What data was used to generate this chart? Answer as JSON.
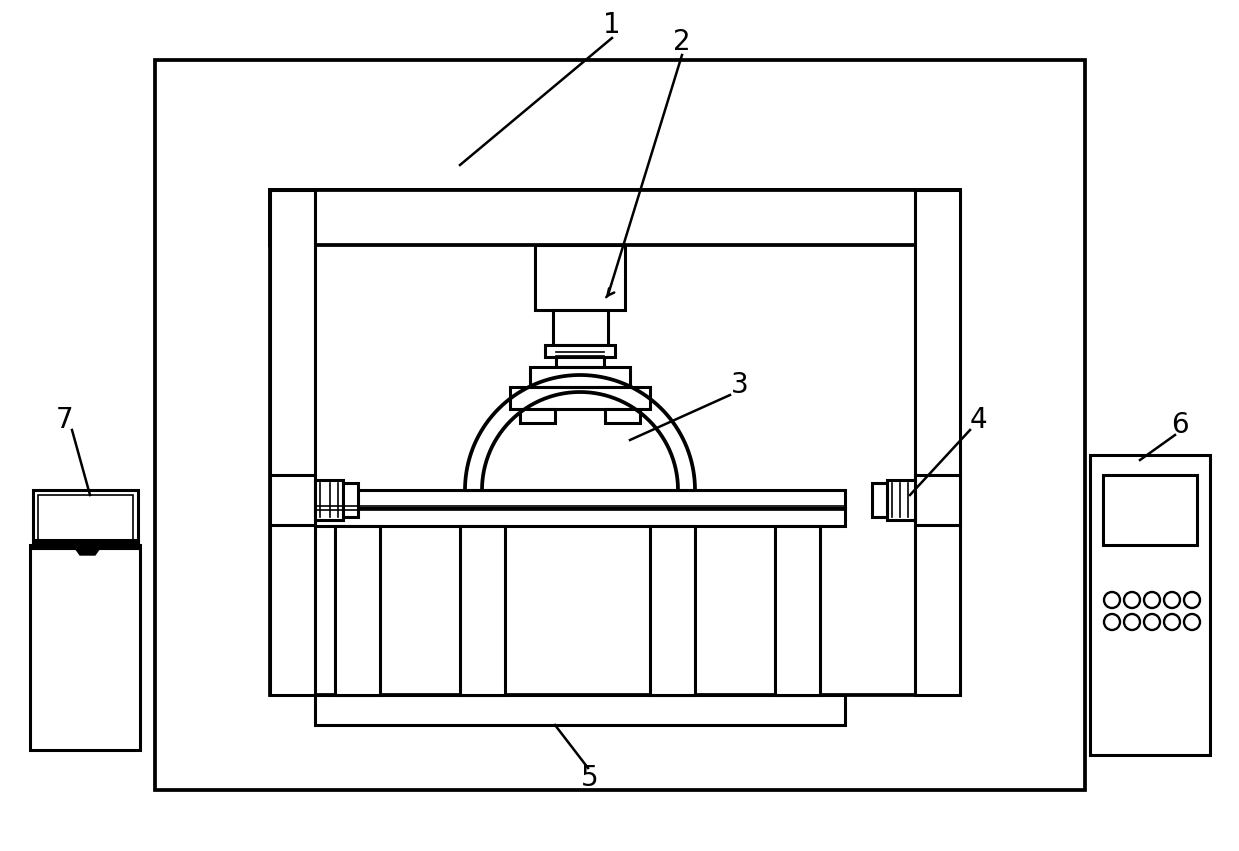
{
  "bg_color": "#ffffff",
  "lc": "#000000",
  "lw": 2.2,
  "tlw": 1.2,
  "fig_width": 12.39,
  "fig_height": 8.51
}
